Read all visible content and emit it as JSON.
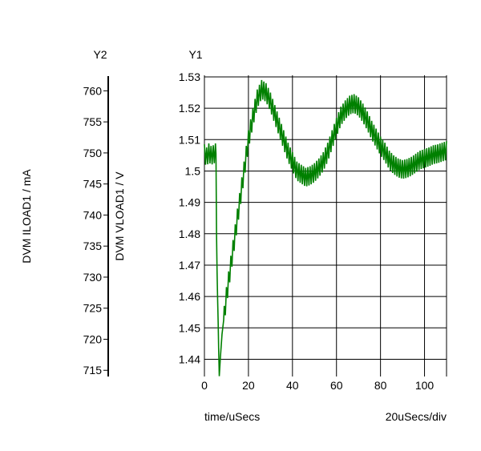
{
  "chart_data": {
    "type": "line",
    "y1_header": "Y1",
    "y2_header": "Y2",
    "y1_label": "DVM VLOAD1 / V",
    "y2_label": "DVM ILOAD1 / mA",
    "xlabel": "time/uSecs",
    "x_scale_note": "20uSecs/div",
    "xlim": [
      0,
      110
    ],
    "y1lim": [
      1.4345,
      1.5305
    ],
    "y2lim": [
      714,
      762.5
    ],
    "x_ticks": [
      0,
      20,
      40,
      60,
      80,
      100
    ],
    "y1_ticks": [
      1.44,
      1.45,
      1.46,
      1.47,
      1.48,
      1.49,
      1.5,
      1.51,
      1.52,
      1.53
    ],
    "y2_ticks": [
      715,
      720,
      725,
      730,
      735,
      740,
      745,
      750,
      755,
      760
    ],
    "grid": true,
    "series_color": "#008000",
    "series": [
      {
        "axis": "y1",
        "ripple_amplitude": 0.003,
        "ripple_period": 1.0,
        "points": [
          [
            0,
            1.5055
          ],
          [
            1,
            1.5045
          ],
          [
            2,
            1.5058
          ],
          [
            3,
            1.505
          ],
          [
            4,
            1.5052
          ],
          [
            5,
            1.5058
          ],
          [
            5.3,
            1.5055
          ],
          [
            5.5,
            1.48
          ],
          [
            5.8,
            1.465
          ],
          [
            6.3,
            1.45
          ],
          [
            6.7,
            1.434
          ],
          [
            7.2,
            1.44
          ],
          [
            8,
            1.448
          ],
          [
            10,
            1.46
          ],
          [
            12,
            1.47
          ],
          [
            14,
            1.48
          ],
          [
            16,
            1.49
          ],
          [
            18,
            1.5
          ],
          [
            20,
            1.51
          ],
          [
            22,
            1.517
          ],
          [
            24,
            1.523
          ],
          [
            26,
            1.526
          ],
          [
            28,
            1.525
          ],
          [
            30,
            1.522
          ],
          [
            32,
            1.518
          ],
          [
            34,
            1.514
          ],
          [
            36,
            1.51
          ],
          [
            38,
            1.506
          ],
          [
            40,
            1.503
          ],
          [
            42,
            1.5
          ],
          [
            44,
            1.499
          ],
          [
            46,
            1.498
          ],
          [
            48,
            1.4985
          ],
          [
            50,
            1.4995
          ],
          [
            52,
            1.501
          ],
          [
            54,
            1.503
          ],
          [
            56,
            1.506
          ],
          [
            58,
            1.51
          ],
          [
            60,
            1.514
          ],
          [
            62,
            1.5175
          ],
          [
            64,
            1.5195
          ],
          [
            66,
            1.521
          ],
          [
            68,
            1.5215
          ],
          [
            70,
            1.5205
          ],
          [
            72,
            1.5185
          ],
          [
            74,
            1.516
          ],
          [
            76,
            1.513
          ],
          [
            78,
            1.5105
          ],
          [
            80,
            1.508
          ],
          [
            82,
            1.506
          ],
          [
            84,
            1.5035
          ],
          [
            86,
            1.502
          ],
          [
            88,
            1.501
          ],
          [
            90,
            1.5005
          ],
          [
            92,
            1.5008
          ],
          [
            94,
            1.5015
          ],
          [
            96,
            1.5025
          ],
          [
            98,
            1.5035
          ],
          [
            100,
            1.504
          ],
          [
            102,
            1.5045
          ],
          [
            104,
            1.5052
          ],
          [
            106,
            1.5055
          ],
          [
            108,
            1.506
          ],
          [
            110,
            1.5065
          ]
        ]
      }
    ]
  }
}
